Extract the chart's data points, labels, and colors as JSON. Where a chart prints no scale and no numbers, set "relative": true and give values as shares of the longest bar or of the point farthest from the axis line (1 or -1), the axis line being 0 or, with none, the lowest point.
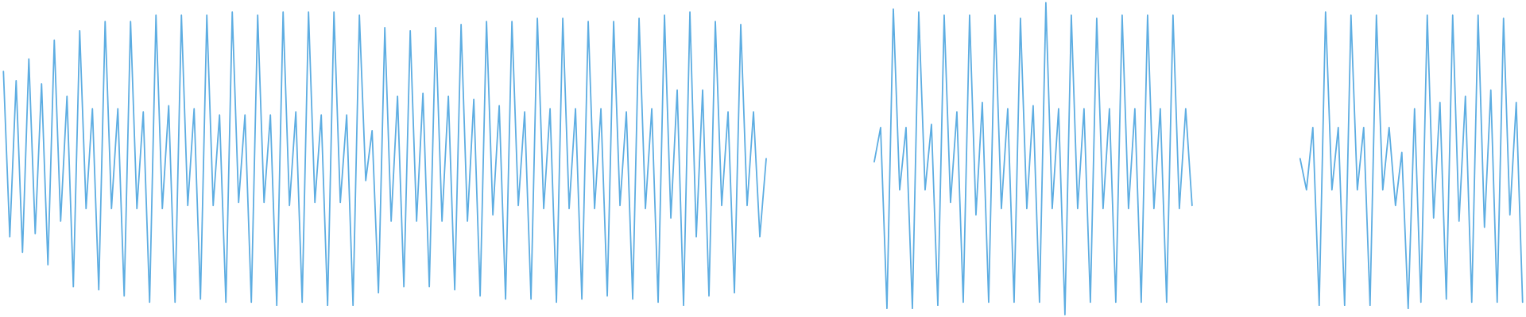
{
  "chart_data": {
    "type": "line",
    "relative": true,
    "categories": [
      null,
      null,
      null,
      null,
      null,
      null,
      null,
      null,
      null,
      null,
      null,
      null,
      null,
      null,
      null,
      null,
      null,
      null,
      null,
      null,
      null,
      null,
      null,
      null,
      null,
      null,
      null,
      null,
      null,
      null,
      null,
      null,
      null,
      null,
      null,
      null,
      null,
      null,
      null,
      null,
      null,
      null,
      null,
      null,
      null,
      null,
      null,
      null,
      null,
      null,
      null,
      null,
      null,
      null,
      null,
      null,
      null,
      null,
      null,
      null,
      null,
      null,
      null,
      null,
      null,
      null,
      null,
      null,
      null,
      null,
      null,
      null,
      null,
      null,
      null,
      null,
      null,
      null,
      null,
      null,
      null,
      null,
      null,
      null,
      null,
      null,
      null,
      null,
      null,
      null,
      null,
      null,
      null,
      null,
      null,
      null,
      null,
      null,
      null,
      null,
      null,
      null,
      null,
      null,
      null,
      null,
      null,
      null,
      null,
      null,
      null,
      null,
      null,
      null,
      null,
      null,
      null,
      null,
      null,
      null,
      null,
      null,
      null,
      null,
      null,
      null,
      null,
      null,
      null,
      null,
      null,
      null,
      null,
      null,
      null,
      null,
      null,
      null,
      null,
      null,
      null,
      null,
      null,
      null,
      null,
      null,
      null,
      null,
      null,
      null,
      null,
      null,
      null,
      null,
      null,
      null,
      null,
      null,
      null,
      null,
      null,
      null,
      null,
      null,
      null,
      null,
      null,
      null,
      null,
      null,
      null,
      null,
      null,
      null,
      null,
      null,
      null,
      null,
      null,
      null,
      null,
      null,
      null,
      null,
      null,
      null,
      null,
      null,
      null,
      null,
      null,
      null,
      null,
      null,
      null,
      null,
      null,
      null,
      null,
      null,
      null,
      null,
      null,
      null,
      null,
      null,
      null,
      null,
      null,
      null,
      null,
      null,
      null,
      null,
      null,
      null,
      null,
      null,
      null,
      null,
      null,
      null,
      null,
      null,
      null,
      null,
      null,
      null,
      null,
      null,
      null,
      null,
      null,
      null,
      null,
      null,
      null,
      null,
      null,
      null
    ],
    "series": [
      {
        "color": "#5dade2",
        "values": [
          0.78,
          0.25,
          0.75,
          0.2,
          0.82,
          0.26,
          0.74,
          0.16,
          0.88,
          0.3,
          0.7,
          0.09,
          0.91,
          0.34,
          0.66,
          0.08,
          0.94,
          0.34,
          0.66,
          0.06,
          0.94,
          0.34,
          0.65,
          0.04,
          0.96,
          0.34,
          0.67,
          0.04,
          0.96,
          0.35,
          0.66,
          0.05,
          0.96,
          0.35,
          0.64,
          0.04,
          0.97,
          0.36,
          0.64,
          0.04,
          0.96,
          0.36,
          0.64,
          0.03,
          0.97,
          0.35,
          0.65,
          0.04,
          0.97,
          0.36,
          0.64,
          0.03,
          0.97,
          0.36,
          0.64,
          0.03,
          0.96,
          0.43,
          0.59,
          0.07,
          0.92,
          0.3,
          0.7,
          0.09,
          0.91,
          0.3,
          0.71,
          0.09,
          0.92,
          0.3,
          0.7,
          0.08,
          0.93,
          0.3,
          0.69,
          0.06,
          0.94,
          0.32,
          0.67,
          0.05,
          0.94,
          0.35,
          0.65,
          0.05,
          0.95,
          0.34,
          0.66,
          0.04,
          0.95,
          0.34,
          0.66,
          0.05,
          0.94,
          0.34,
          0.66,
          0.06,
          0.94,
          0.35,
          0.65,
          0.05,
          0.95,
          0.34,
          0.66,
          0.04,
          0.96,
          0.31,
          0.72,
          0.03,
          0.97,
          0.25,
          0.72,
          0.06,
          0.94,
          0.35,
          0.65,
          0.07,
          0.93,
          0.35,
          0.65,
          0.25,
          0.5,
          null,
          null,
          null,
          null,
          null,
          null,
          null,
          null,
          null,
          null,
          null,
          null,
          null,
          null,
          null,
          null,
          null,
          null,
          null,
          null,
          null,
          null,
          null,
          null,
          null,
          null,
          null,
          null,
          null,
          null,
          null,
          null,
          null,
          null,
          null,
          null,
          null,
          null,
          null,
          null,
          null,
          null,
          null,
          null,
          null,
          null,
          null,
          null,
          null,
          null,
          null,
          null,
          null,
          null,
          null,
          null,
          null,
          null,
          null,
          null,
          null,
          null,
          null,
          null,
          null,
          null,
          null,
          null,
          null,
          null,
          null,
          null,
          null,
          null,
          null,
          null,
          null,
          null,
          null,
          null,
          null,
          null,
          null,
          null,
          null,
          null,
          null,
          null,
          null,
          null,
          null,
          null,
          null,
          null,
          null,
          null,
          null,
          null,
          null,
          null,
          null,
          null,
          null,
          null,
          null,
          null,
          null,
          null,
          null,
          null,
          null,
          null,
          null,
          null,
          null,
          null,
          null,
          null,
          null
        ]
      },
      {
        "color": "#5dade2",
        "values": [
          null,
          null,
          null,
          null,
          null,
          null,
          null,
          null,
          null,
          null,
          null,
          null,
          null,
          null,
          null,
          null,
          null,
          null,
          null,
          null,
          null,
          null,
          null,
          null,
          null,
          null,
          null,
          null,
          null,
          null,
          null,
          null,
          null,
          null,
          null,
          null,
          null,
          null,
          null,
          null,
          null,
          null,
          null,
          null,
          null,
          null,
          null,
          null,
          null,
          null,
          null,
          null,
          null,
          null,
          null,
          null,
          null,
          null,
          null,
          null,
          null,
          null,
          null,
          null,
          null,
          null,
          null,
          null,
          null,
          null,
          null,
          null,
          null,
          null,
          null,
          null,
          null,
          null,
          null,
          null,
          null,
          null,
          null,
          null,
          null,
          null,
          null,
          null,
          null,
          null,
          null,
          null,
          null,
          null,
          null,
          null,
          null,
          null,
          null,
          null,
          null,
          null,
          null,
          null,
          null,
          null,
          null,
          null,
          null,
          null,
          null,
          null,
          null,
          null,
          null,
          null,
          null,
          null,
          null,
          null,
          null,
          null,
          null,
          null,
          null,
          null,
          null,
          null,
          null,
          null,
          null,
          null,
          null,
          null,
          null,
          null,
          null,
          0.49,
          0.6,
          0.02,
          0.98,
          0.4,
          0.6,
          0.02,
          0.97,
          0.4,
          0.61,
          0.03,
          0.96,
          0.36,
          0.65,
          0.04,
          0.96,
          0.32,
          0.68,
          0.04,
          0.96,
          0.34,
          0.66,
          0.04,
          0.95,
          0.34,
          0.67,
          0.04,
          1,
          0.34,
          0.66,
          0,
          0.96,
          0.34,
          0.66,
          0.04,
          0.95,
          0.34,
          0.66,
          0.04,
          0.96,
          0.34,
          0.66,
          0.04,
          0.96,
          0.34,
          0.66,
          0.04,
          0.96,
          0.34,
          0.66,
          0.35,
          null,
          null,
          null,
          null,
          null,
          null,
          null,
          null,
          null,
          null,
          null,
          null,
          null,
          null,
          null,
          null,
          null,
          null,
          null,
          null,
          null,
          null,
          null,
          null,
          null,
          null,
          null,
          null,
          null,
          null,
          null,
          null,
          null,
          null,
          null,
          null,
          null,
          null,
          null,
          null,
          null,
          null,
          null,
          null,
          null,
          null,
          null,
          null,
          null,
          null,
          null,
          null
        ]
      },
      {
        "color": "#5dade2",
        "values": [
          null,
          null,
          null,
          null,
          null,
          null,
          null,
          null,
          null,
          null,
          null,
          null,
          null,
          null,
          null,
          null,
          null,
          null,
          null,
          null,
          null,
          null,
          null,
          null,
          null,
          null,
          null,
          null,
          null,
          null,
          null,
          null,
          null,
          null,
          null,
          null,
          null,
          null,
          null,
          null,
          null,
          null,
          null,
          null,
          null,
          null,
          null,
          null,
          null,
          null,
          null,
          null,
          null,
          null,
          null,
          null,
          null,
          null,
          null,
          null,
          null,
          null,
          null,
          null,
          null,
          null,
          null,
          null,
          null,
          null,
          null,
          null,
          null,
          null,
          null,
          null,
          null,
          null,
          null,
          null,
          null,
          null,
          null,
          null,
          null,
          null,
          null,
          null,
          null,
          null,
          null,
          null,
          null,
          null,
          null,
          null,
          null,
          null,
          null,
          null,
          null,
          null,
          null,
          null,
          null,
          null,
          null,
          null,
          null,
          null,
          null,
          null,
          null,
          null,
          null,
          null,
          null,
          null,
          null,
          null,
          null,
          null,
          null,
          null,
          null,
          null,
          null,
          null,
          null,
          null,
          null,
          null,
          null,
          null,
          null,
          null,
          null,
          null,
          null,
          null,
          null,
          null,
          null,
          null,
          null,
          null,
          null,
          null,
          null,
          null,
          null,
          null,
          null,
          null,
          null,
          null,
          null,
          null,
          null,
          null,
          null,
          null,
          null,
          null,
          null,
          null,
          null,
          null,
          null,
          null,
          null,
          null,
          null,
          null,
          null,
          null,
          null,
          null,
          null,
          null,
          null,
          null,
          null,
          null,
          null,
          null,
          null,
          null,
          null,
          null,
          null,
          null,
          null,
          null,
          null,
          null,
          null,
          null,
          null,
          null,
          null,
          null,
          null,
          null,
          0.5,
          0.4,
          0.6,
          0.03,
          0.97,
          0.4,
          0.6,
          0.03,
          0.96,
          0.4,
          0.6,
          0.03,
          0.96,
          0.4,
          0.6,
          0.35,
          0.52,
          0.02,
          0.66,
          0.04,
          0.96,
          0.31,
          0.68,
          0.05,
          0.96,
          0.3,
          0.7,
          0.04,
          0.96,
          0.28,
          0.72,
          0.04,
          0.95,
          0.32,
          0.68,
          0.04
        ]
      }
    ]
  }
}
